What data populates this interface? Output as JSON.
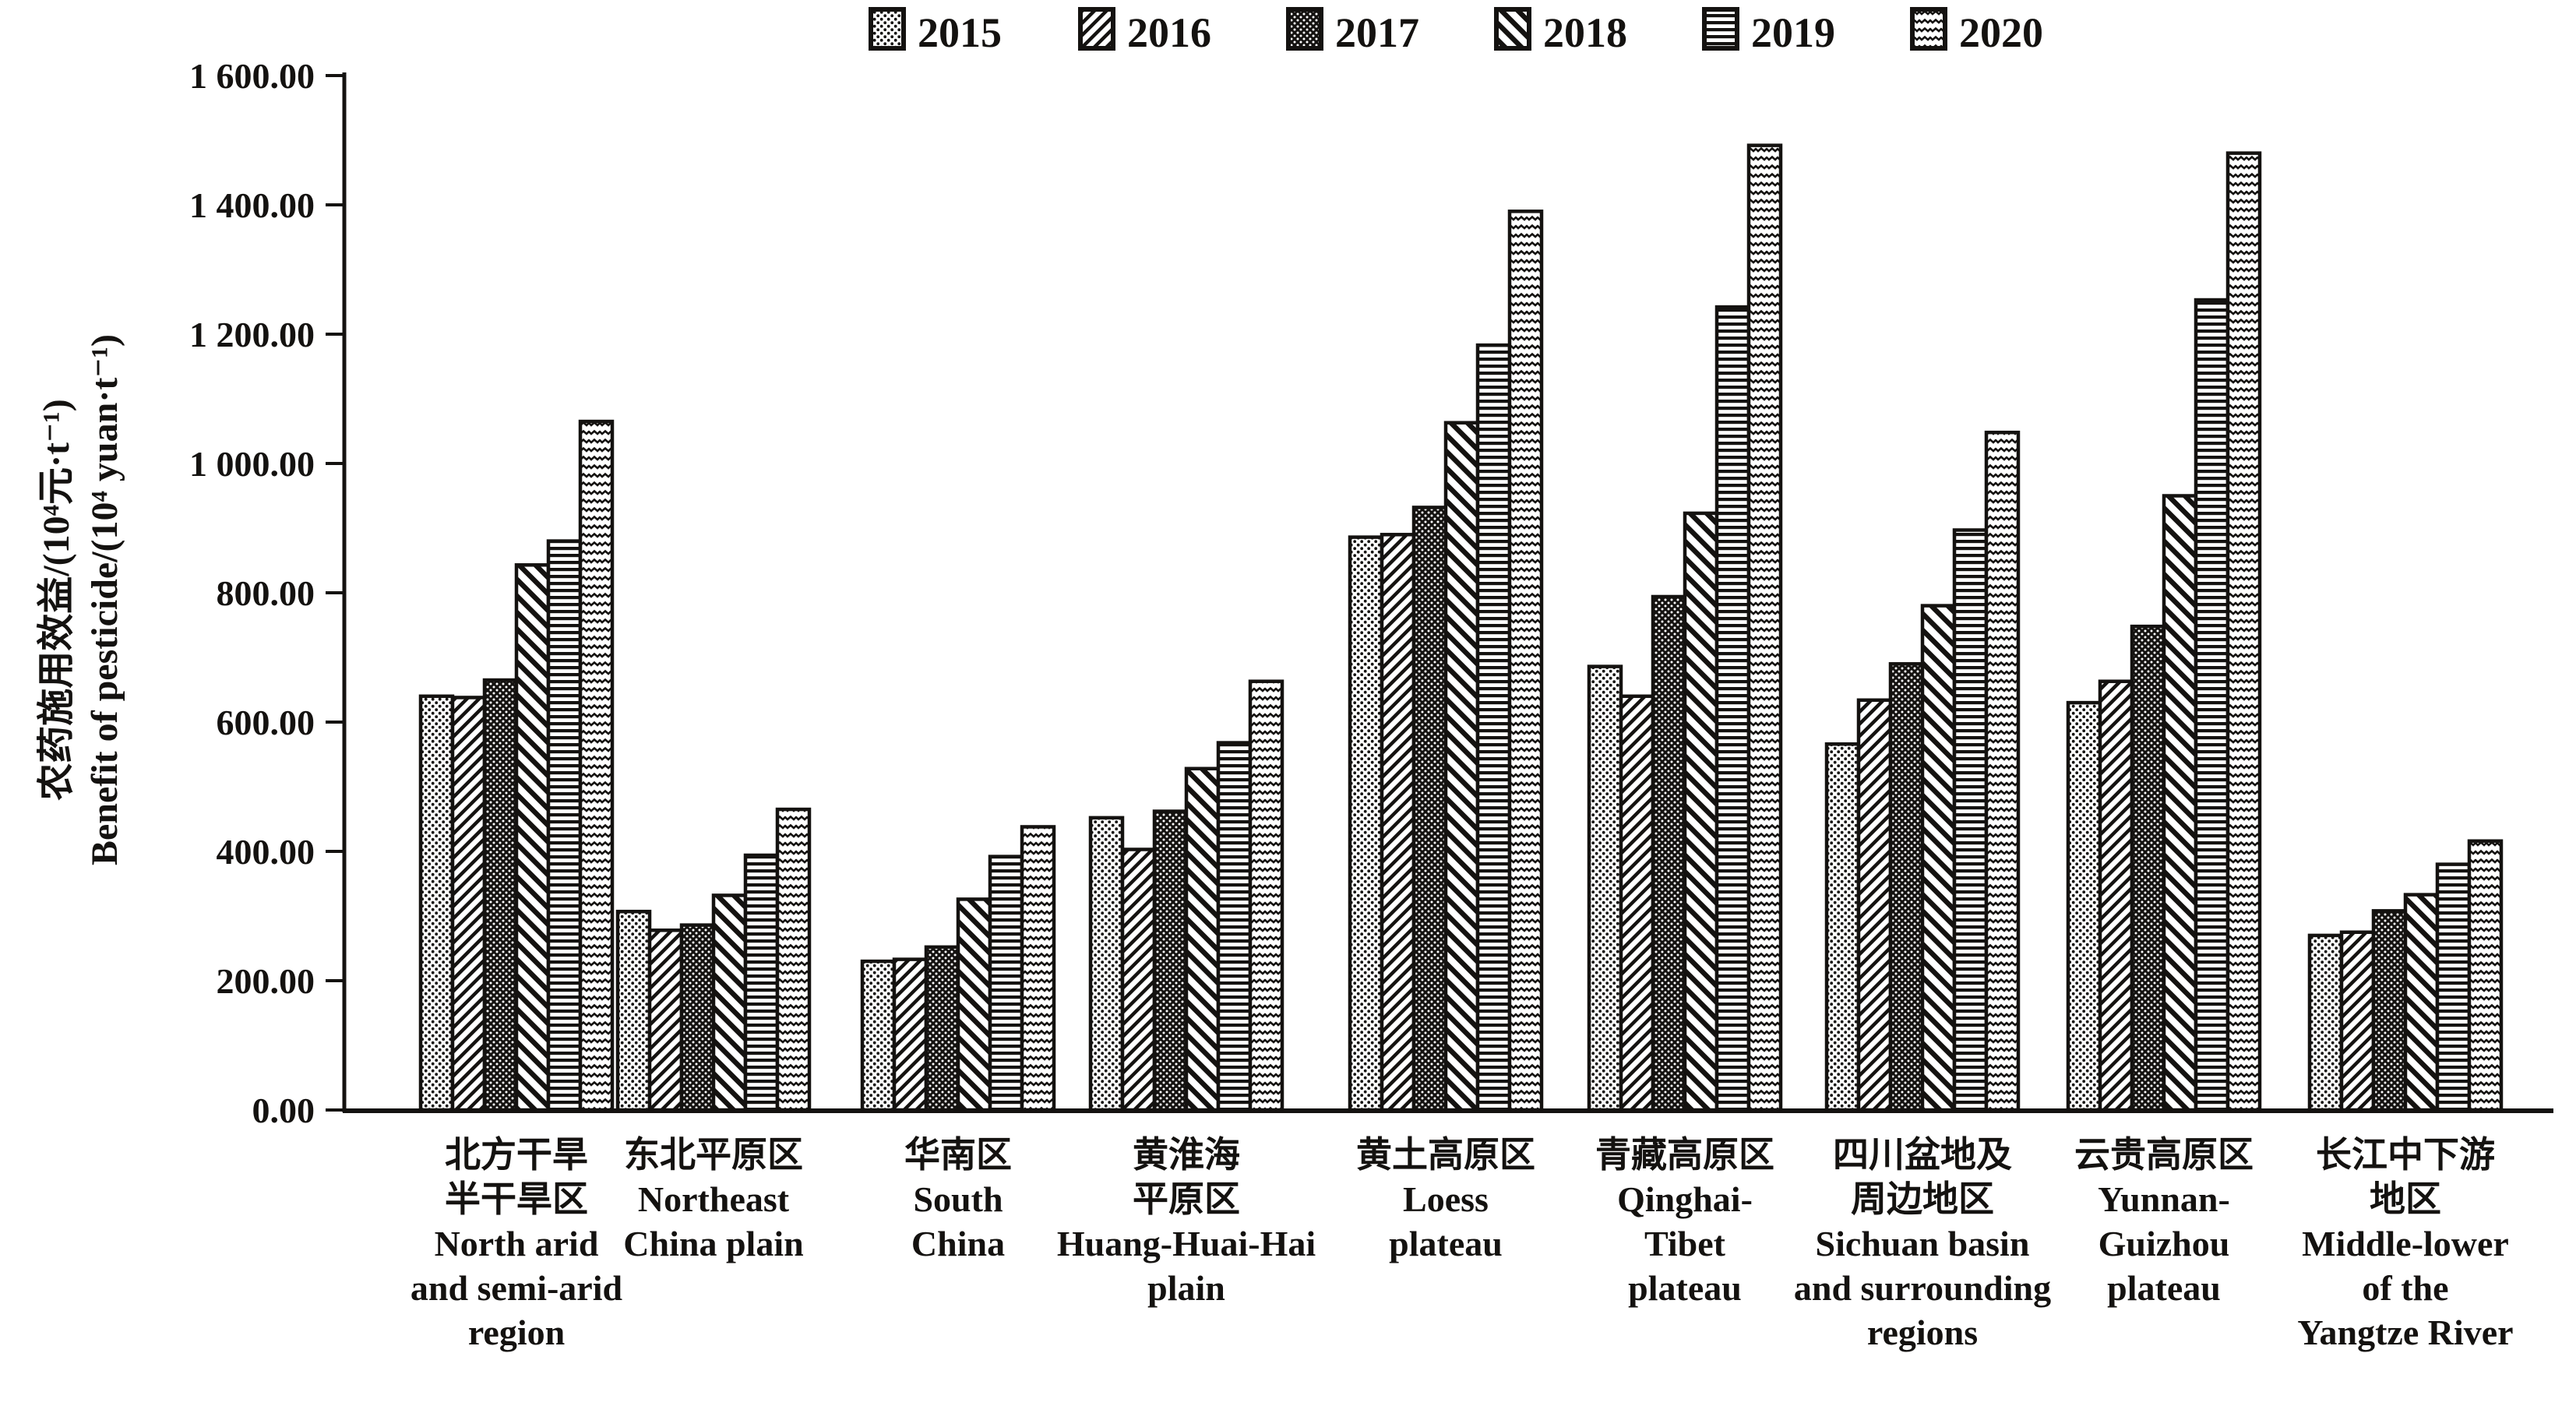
{
  "figure": {
    "background_color": "#ffffff",
    "ink_color": "#141210"
  },
  "chart_data": {
    "type": "bar",
    "title": "",
    "ylabel_lines": [
      "农药施用效益/(10⁴元·t⁻¹)",
      "Benefit of pesticide/(10⁴ yuan·t⁻¹)"
    ],
    "ylim": [
      0,
      1600
    ],
    "ytick_step": 200,
    "ytick_labels": [
      "0.00",
      "200.00",
      "400.00",
      "600.00",
      "800.00",
      "1 000.00",
      "1 200.00",
      "1 400.00",
      "1 600.00"
    ],
    "grid": false,
    "legend_position": "top-center",
    "categories": [
      {
        "id": "north-arid",
        "label_lines": [
          "北方干旱",
          "半干旱区",
          "North arid",
          "and semi-arid",
          "region"
        ]
      },
      {
        "id": "northeast-china-plain",
        "label_lines": [
          "东北平原区",
          "Northeast",
          "China plain"
        ]
      },
      {
        "id": "south-china",
        "label_lines": [
          "华南区",
          "South",
          "China"
        ]
      },
      {
        "id": "huang-huai-hai-plain",
        "label_lines": [
          "黄淮海",
          "平原区",
          "Huang-Huai-Hai",
          "plain"
        ]
      },
      {
        "id": "loess-plateau",
        "label_lines": [
          "黄土高原区",
          "Loess",
          "plateau"
        ]
      },
      {
        "id": "qinghai-tibet-plateau",
        "label_lines": [
          "青藏高原区",
          "Qinghai-",
          "Tibet",
          "plateau"
        ]
      },
      {
        "id": "sichuan-basin",
        "label_lines": [
          "四川盆地及",
          "周边地区",
          "Sichuan basin",
          "and surrounding",
          "regions"
        ]
      },
      {
        "id": "yunnan-guizhou-plateau",
        "label_lines": [
          "云贵高原区",
          "Yunnan-",
          "Guizhou",
          "plateau"
        ]
      },
      {
        "id": "middle-lower-yangtze",
        "label_lines": [
          "长江中下游",
          "地区",
          "Middle-lower",
          "of the",
          "Yangtze River"
        ]
      }
    ],
    "series": [
      {
        "name": "2015",
        "pattern": "dots-light-swatch",
        "values": [
          640,
          307,
          230,
          452,
          886,
          686,
          566,
          630,
          270
        ]
      },
      {
        "name": "2016",
        "pattern": "diagonal-up-swatch",
        "values": [
          638,
          278,
          233,
          403,
          890,
          640,
          634,
          663,
          275
        ]
      },
      {
        "name": "2017",
        "pattern": "dots-dark-swatch",
        "values": [
          665,
          286,
          252,
          462,
          932,
          794,
          690,
          748,
          308
        ]
      },
      {
        "name": "2018",
        "pattern": "diagonal-down-swatch",
        "values": [
          843,
          332,
          326,
          528,
          1063,
          923,
          780,
          950,
          333
        ]
      },
      {
        "name": "2019",
        "pattern": "horizontal-stripes-swatch",
        "values": [
          880,
          394,
          392,
          568,
          1183,
          1242,
          897,
          1253,
          380
        ]
      },
      {
        "name": "2020",
        "pattern": "waves-swatch",
        "values": [
          1065,
          465,
          438,
          663,
          1390,
          1492,
          1048,
          1480,
          416
        ]
      }
    ]
  }
}
